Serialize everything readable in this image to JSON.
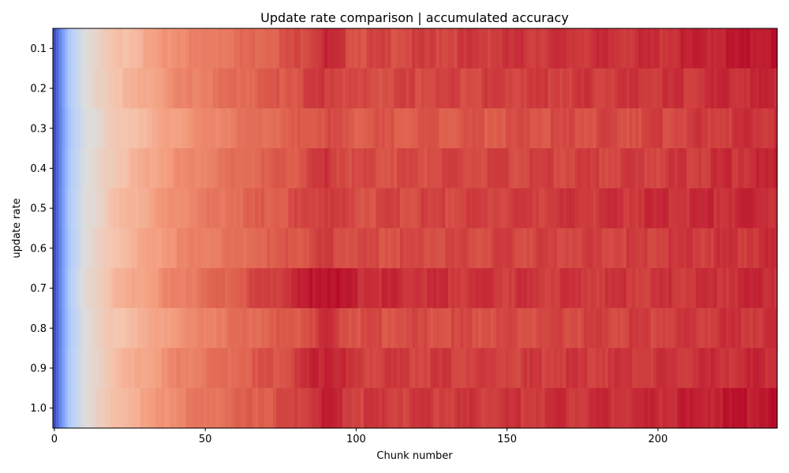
{
  "chart_data": {
    "type": "heatmap",
    "title": "Update rate comparison | accumulated accuracy",
    "xlabel": "Chunk number",
    "ylabel": "update rate",
    "x_count": 240,
    "xlim": [
      -0.5,
      239.5
    ],
    "x_ticks": [
      0,
      50,
      100,
      150,
      200
    ],
    "y_categories": [
      "0.1",
      "0.2",
      "0.3",
      "0.4",
      "0.5",
      "0.6",
      "0.7",
      "0.8",
      "0.9",
      "1.0"
    ],
    "colormap": "coolwarm",
    "grid": false,
    "legend": "none",
    "row_profiles": [
      {
        "update_rate": "0.1",
        "values_at_chunks": {
          "0": 0.0,
          "5": 0.35,
          "10": 0.5,
          "20": 0.62,
          "40": 0.78,
          "60": 0.84,
          "80": 0.9,
          "90": 0.95,
          "100": 0.9,
          "150": 0.93,
          "200": 0.94,
          "239": 0.98
        }
      },
      {
        "update_rate": "0.2",
        "values_at_chunks": {
          "0": 0.0,
          "5": 0.35,
          "10": 0.5,
          "20": 0.63,
          "40": 0.78,
          "60": 0.85,
          "80": 0.9,
          "90": 0.93,
          "100": 0.9,
          "150": 0.92,
          "200": 0.93,
          "239": 0.95
        }
      },
      {
        "update_rate": "0.3",
        "values_at_chunks": {
          "0": 0.0,
          "5": 0.33,
          "10": 0.48,
          "20": 0.6,
          "40": 0.74,
          "60": 0.82,
          "80": 0.87,
          "90": 0.9,
          "100": 0.88,
          "150": 0.89,
          "200": 0.91,
          "239": 0.94
        }
      },
      {
        "update_rate": "0.4",
        "values_at_chunks": {
          "0": 0.0,
          "5": 0.34,
          "10": 0.49,
          "20": 0.62,
          "40": 0.77,
          "60": 0.84,
          "80": 0.89,
          "90": 0.93,
          "100": 0.9,
          "150": 0.91,
          "200": 0.92,
          "239": 0.95
        }
      },
      {
        "update_rate": "0.5",
        "values_at_chunks": {
          "0": 0.0,
          "5": 0.35,
          "10": 0.5,
          "20": 0.63,
          "40": 0.78,
          "60": 0.85,
          "80": 0.9,
          "90": 0.93,
          "100": 0.9,
          "150": 0.92,
          "200": 0.94,
          "239": 0.95
        }
      },
      {
        "update_rate": "0.6",
        "values_at_chunks": {
          "0": 0.0,
          "5": 0.34,
          "10": 0.5,
          "20": 0.63,
          "40": 0.78,
          "60": 0.84,
          "80": 0.89,
          "90": 0.92,
          "100": 0.9,
          "150": 0.91,
          "200": 0.92,
          "239": 0.94
        }
      },
      {
        "update_rate": "0.7",
        "values_at_chunks": {
          "0": 0.0,
          "5": 0.35,
          "10": 0.52,
          "20": 0.66,
          "40": 0.8,
          "60": 0.88,
          "80": 0.95,
          "90": 0.99,
          "100": 0.95,
          "150": 0.93,
          "200": 0.93,
          "239": 0.95
        }
      },
      {
        "update_rate": "0.8",
        "values_at_chunks": {
          "0": 0.0,
          "5": 0.34,
          "10": 0.5,
          "20": 0.62,
          "40": 0.76,
          "60": 0.84,
          "80": 0.89,
          "90": 0.93,
          "100": 0.9,
          "150": 0.9,
          "200": 0.92,
          "239": 0.94
        }
      },
      {
        "update_rate": "0.9",
        "values_at_chunks": {
          "0": 0.0,
          "5": 0.35,
          "10": 0.5,
          "20": 0.64,
          "40": 0.79,
          "60": 0.86,
          "80": 0.92,
          "90": 0.97,
          "100": 0.92,
          "150": 0.92,
          "200": 0.93,
          "239": 0.95
        }
      },
      {
        "update_rate": "1.0",
        "values_at_chunks": {
          "0": 0.0,
          "5": 0.35,
          "10": 0.5,
          "20": 0.64,
          "40": 0.79,
          "60": 0.86,
          "80": 0.91,
          "90": 0.96,
          "100": 0.92,
          "150": 0.93,
          "200": 0.95,
          "239": 0.98
        }
      }
    ]
  }
}
